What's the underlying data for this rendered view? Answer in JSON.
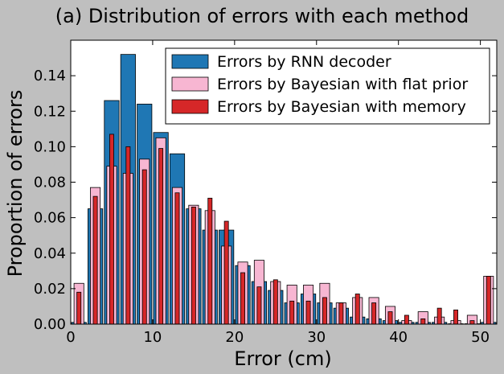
{
  "chart_data": {
    "type": "bar",
    "title": "(a)   Distribution of errors with each method",
    "xlabel": "Error (cm)",
    "ylabel": "Proportion of errors",
    "xlim": [
      0,
      52
    ],
    "ylim": [
      0,
      0.16
    ],
    "xticks": [
      "0",
      "10",
      "20",
      "30",
      "40",
      "50"
    ],
    "yticks": [
      "0.00",
      "0.02",
      "0.04",
      "0.06",
      "0.08",
      "0.10",
      "0.12",
      "0.14"
    ],
    "legend_position": "top-right",
    "grid": false,
    "series": [
      {
        "name": "Errors by RNN decoder",
        "color": "#1f77b4",
        "x": [
          1,
          3,
          5,
          7,
          9,
          11,
          13,
          15,
          17,
          19,
          21,
          23,
          25,
          27,
          29,
          31,
          33,
          35,
          37,
          39,
          41,
          43,
          45,
          47,
          49,
          51
        ],
        "values": [
          0.001,
          0.065,
          0.126,
          0.152,
          0.124,
          0.108,
          0.096,
          0.065,
          0.053,
          0.053,
          0.033,
          0.024,
          0.019,
          0.012,
          0.017,
          0.012,
          0.009,
          0.004,
          0.003,
          0.002,
          0.001,
          0.001,
          0.001,
          0.0,
          0.0,
          0.001
        ]
      },
      {
        "name": "Errors by Bayesian with flat prior",
        "color": "#f7b6d2",
        "x": [
          1,
          3,
          5,
          7,
          9,
          11,
          13,
          15,
          17,
          19,
          21,
          23,
          25,
          27,
          29,
          31,
          33,
          35,
          37,
          39,
          41,
          43,
          45,
          47,
          49,
          51
        ],
        "values": [
          0.023,
          0.077,
          0.089,
          0.085,
          0.093,
          0.105,
          0.077,
          0.067,
          0.064,
          0.044,
          0.035,
          0.036,
          0.024,
          0.022,
          0.022,
          0.023,
          0.012,
          0.015,
          0.015,
          0.01,
          0.002,
          0.007,
          0.004,
          0.002,
          0.005,
          0.027
        ]
      },
      {
        "name": "Errors by Bayesian with memory",
        "color": "#d62728",
        "x": [
          1,
          3,
          5,
          7,
          9,
          11,
          13,
          15,
          17,
          19,
          21,
          23,
          25,
          27,
          29,
          31,
          33,
          35,
          37,
          39,
          41,
          43,
          45,
          47,
          49,
          51
        ],
        "values": [
          0.018,
          0.072,
          0.107,
          0.1,
          0.087,
          0.099,
          0.074,
          0.066,
          0.071,
          0.058,
          0.029,
          0.021,
          0.025,
          0.013,
          0.013,
          0.015,
          0.012,
          0.017,
          0.012,
          0.007,
          0.005,
          0.003,
          0.009,
          0.008,
          0.002,
          0.027
        ]
      }
    ]
  }
}
